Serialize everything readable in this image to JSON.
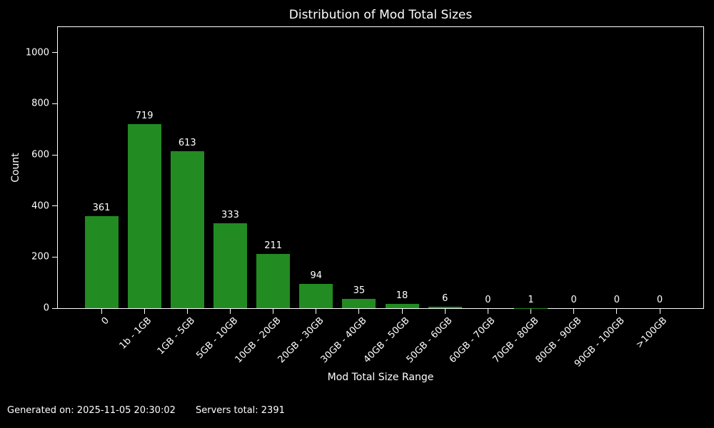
{
  "chart_data": {
    "type": "bar",
    "title": "Distribution of Mod Total Sizes",
    "xlabel": "Mod Total Size Range",
    "ylabel": "Count",
    "categories": [
      "0",
      "1b - 1GB",
      "1GB - 5GB",
      "5GB - 10GB",
      "10GB - 20GB",
      "20GB - 30GB",
      "30GB - 40GB",
      "40GB - 50GB",
      "50GB - 60GB",
      "60GB - 70GB",
      "70GB - 80GB",
      "80GB - 90GB",
      "90GB - 100GB",
      ">100GB"
    ],
    "values": [
      361,
      719,
      613,
      333,
      211,
      94,
      35,
      18,
      6,
      0,
      1,
      0,
      0,
      0
    ],
    "bar_value_labels_shown": true,
    "yticks": [
      0,
      200,
      400,
      600,
      800,
      1000
    ],
    "ylim": [
      0,
      1100
    ],
    "xtick_rotation": 45,
    "grid": false,
    "legend": "none",
    "colors": {
      "bar": "#228B22",
      "background": "#000000",
      "text": "#FFFFFF",
      "spine": "#FFFFFF"
    }
  },
  "footer": {
    "generated": "Generated on: 2025-11-05 20:30:02",
    "servers_total": "Servers total: 2391"
  }
}
